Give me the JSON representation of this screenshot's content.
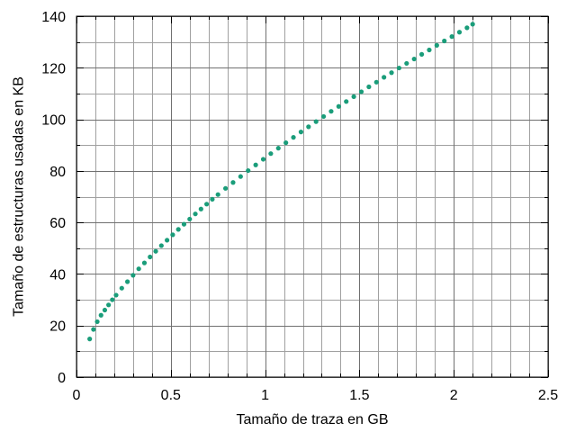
{
  "chart_data": {
    "type": "scatter",
    "title": "",
    "xlabel": "Tamaño de traza en GB",
    "ylabel": "Tamaño de estructuras usadas en KB",
    "xlim": [
      0,
      2.5
    ],
    "ylim": [
      0,
      140
    ],
    "x_ticks": [
      "0",
      "0.5",
      "1",
      "1.5",
      "2",
      "2.5"
    ],
    "y_ticks": [
      "0",
      "20",
      "40",
      "60",
      "80",
      "100",
      "120",
      "140"
    ],
    "x_tick_values": [
      0,
      0.5,
      1,
      1.5,
      2,
      2.5
    ],
    "y_tick_values": [
      0,
      20,
      40,
      60,
      80,
      100,
      120,
      140
    ],
    "minor_x_step": 0.1,
    "minor_y_step": 10,
    "grid": true,
    "marker_color": "#1a9d7a",
    "series": [
      {
        "x": [
          0.07,
          0.09,
          0.11,
          0.13,
          0.15,
          0.17,
          0.19,
          0.21,
          0.24,
          0.27,
          0.3,
          0.33,
          0.36,
          0.39,
          0.42,
          0.45,
          0.48,
          0.51,
          0.54,
          0.57,
          0.6,
          0.63,
          0.66,
          0.69,
          0.72,
          0.75,
          0.79,
          0.83,
          0.87,
          0.91,
          0.95,
          0.99,
          1.03,
          1.07,
          1.11,
          1.15,
          1.19,
          1.23,
          1.27,
          1.31,
          1.35,
          1.39,
          1.43,
          1.47,
          1.51,
          1.55,
          1.59,
          1.63,
          1.67,
          1.71,
          1.75,
          1.79,
          1.83,
          1.87,
          1.91,
          1.95,
          1.99,
          2.03,
          2.07,
          2.1
        ],
        "y": [
          14.8,
          18.5,
          21.5,
          24.0,
          26.0,
          28.0,
          30.0,
          31.8,
          34.5,
          37.0,
          39.5,
          42.0,
          44.3,
          46.6,
          48.8,
          51.0,
          53.1,
          55.2,
          57.3,
          59.3,
          61.3,
          63.3,
          65.2,
          67.1,
          69.0,
          70.8,
          73.2,
          75.5,
          77.8,
          80.1,
          82.3,
          84.5,
          86.7,
          88.8,
          90.9,
          93.0,
          95.1,
          97.1,
          99.1,
          101.1,
          103.1,
          105.0,
          106.9,
          108.8,
          110.7,
          112.6,
          114.4,
          116.3,
          118.1,
          119.9,
          121.7,
          123.4,
          125.2,
          126.9,
          128.7,
          130.4,
          132.1,
          133.8,
          135.5,
          136.9
        ]
      }
    ]
  }
}
